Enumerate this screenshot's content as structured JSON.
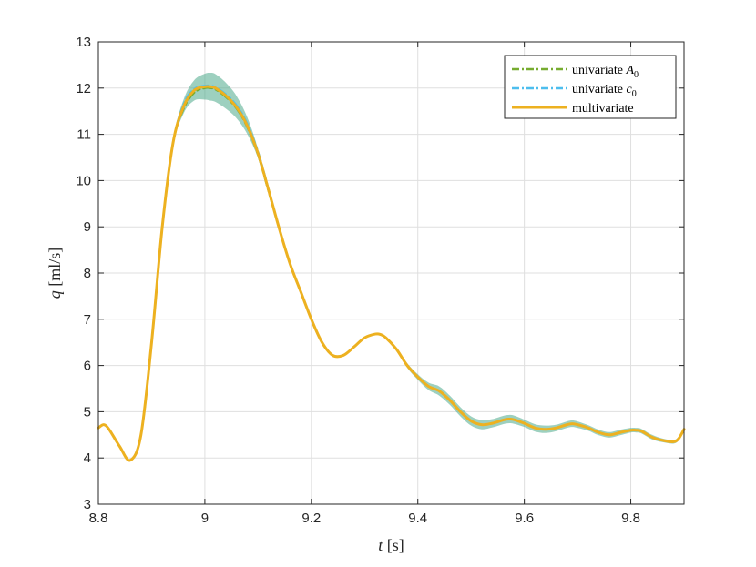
{
  "chart_data": {
    "type": "line",
    "xlabel": "t [s]",
    "ylabel": "q [ml/s]",
    "xlim": [
      8.8,
      9.9
    ],
    "ylim": [
      3,
      13
    ],
    "xticks": [
      8.8,
      9.0,
      9.2,
      9.4,
      9.6,
      9.8
    ],
    "xtick_labels": [
      "8.8",
      "9",
      "9.2",
      "9.4",
      "9.6",
      "9.8"
    ],
    "yticks": [
      3,
      4,
      5,
      6,
      7,
      8,
      9,
      10,
      11,
      12,
      13
    ],
    "ytick_labels": [
      "3",
      "4",
      "5",
      "6",
      "7",
      "8",
      "9",
      "10",
      "11",
      "12",
      "13"
    ],
    "grid": true,
    "legend_position": "top-right",
    "colors": {
      "univariate_A0": "#77ac30",
      "univariate_c0": "#4dbeee",
      "multivariate": "#edb120",
      "band": "#4daa8a"
    },
    "x": [
      8.8,
      8.81,
      8.82,
      8.84,
      8.86,
      8.88,
      8.9,
      8.92,
      8.94,
      8.96,
      8.98,
      9.0,
      9.01,
      9.02,
      9.04,
      9.06,
      9.08,
      9.1,
      9.12,
      9.14,
      9.16,
      9.18,
      9.2,
      9.22,
      9.24,
      9.26,
      9.28,
      9.3,
      9.32,
      9.33,
      9.34,
      9.36,
      9.38,
      9.4,
      9.42,
      9.44,
      9.46,
      9.48,
      9.5,
      9.52,
      9.54,
      9.56,
      9.57,
      9.58,
      9.6,
      9.62,
      9.64,
      9.66,
      9.68,
      9.69,
      9.7,
      9.72,
      9.74,
      9.76,
      9.78,
      9.8,
      9.81,
      9.82,
      9.84,
      9.86,
      9.88,
      9.89,
      9.9
    ],
    "band_halfwidth": [
      0.02,
      0.02,
      0.02,
      0.02,
      0.02,
      0.02,
      0.03,
      0.05,
      0.08,
      0.15,
      0.22,
      0.28,
      0.3,
      0.3,
      0.28,
      0.24,
      0.18,
      0.1,
      0.05,
      0.03,
      0.02,
      0.02,
      0.02,
      0.02,
      0.02,
      0.02,
      0.02,
      0.02,
      0.02,
      0.02,
      0.02,
      0.03,
      0.05,
      0.06,
      0.08,
      0.1,
      0.1,
      0.1,
      0.1,
      0.1,
      0.09,
      0.09,
      0.09,
      0.09,
      0.08,
      0.08,
      0.08,
      0.07,
      0.07,
      0.07,
      0.07,
      0.06,
      0.06,
      0.06,
      0.06,
      0.05,
      0.05,
      0.05,
      0.05,
      0.04,
      0.04,
      0.04,
      0.04
    ],
    "series": [
      {
        "name": "univariate A0",
        "legend_label": "univariate A",
        "legend_sub": "0",
        "style": "dash-dot",
        "color_key": "univariate_A0",
        "values": [
          4.65,
          4.72,
          4.62,
          4.25,
          3.95,
          4.5,
          6.5,
          9.0,
          10.8,
          11.55,
          11.9,
          12.0,
          12.0,
          11.97,
          11.8,
          11.55,
          11.15,
          10.55,
          9.75,
          8.95,
          8.2,
          7.6,
          7.0,
          6.5,
          6.22,
          6.22,
          6.4,
          6.6,
          6.68,
          6.67,
          6.6,
          6.35,
          6.0,
          5.75,
          5.55,
          5.45,
          5.25,
          5.0,
          4.8,
          4.72,
          4.75,
          4.82,
          4.84,
          4.83,
          4.75,
          4.65,
          4.62,
          4.65,
          4.72,
          4.74,
          4.72,
          4.65,
          4.55,
          4.5,
          4.55,
          4.6,
          4.6,
          4.58,
          4.45,
          4.38,
          4.35,
          4.42,
          4.62
        ]
      },
      {
        "name": "univariate c0",
        "legend_label": "univariate c",
        "legend_sub": "0",
        "style": "dash-dot",
        "color_key": "univariate_c0",
        "values": [
          4.65,
          4.72,
          4.62,
          4.25,
          3.95,
          4.5,
          6.5,
          9.0,
          10.8,
          11.65,
          11.98,
          12.05,
          12.05,
          12.02,
          11.86,
          11.62,
          11.22,
          10.62,
          9.8,
          8.95,
          8.2,
          7.6,
          7.0,
          6.5,
          6.22,
          6.22,
          6.4,
          6.6,
          6.68,
          6.67,
          6.6,
          6.35,
          6.0,
          5.75,
          5.55,
          5.45,
          5.25,
          5.0,
          4.8,
          4.72,
          4.75,
          4.82,
          4.84,
          4.83,
          4.75,
          4.65,
          4.62,
          4.65,
          4.72,
          4.74,
          4.72,
          4.65,
          4.55,
          4.5,
          4.55,
          4.6,
          4.6,
          4.58,
          4.45,
          4.38,
          4.35,
          4.42,
          4.62
        ]
      },
      {
        "name": "multivariate",
        "legend_label": "multivariate",
        "legend_sub": "",
        "style": "solid",
        "color_key": "multivariate",
        "values": [
          4.65,
          4.72,
          4.62,
          4.25,
          3.95,
          4.5,
          6.5,
          9.0,
          10.8,
          11.6,
          11.95,
          12.03,
          12.03,
          12.0,
          11.83,
          11.58,
          11.18,
          10.58,
          9.78,
          8.95,
          8.2,
          7.6,
          7.0,
          6.5,
          6.22,
          6.22,
          6.4,
          6.6,
          6.68,
          6.67,
          6.6,
          6.35,
          6.0,
          5.75,
          5.55,
          5.45,
          5.25,
          5.0,
          4.8,
          4.72,
          4.75,
          4.82,
          4.84,
          4.83,
          4.75,
          4.65,
          4.62,
          4.65,
          4.72,
          4.74,
          4.72,
          4.65,
          4.55,
          4.5,
          4.55,
          4.6,
          4.6,
          4.58,
          4.45,
          4.38,
          4.35,
          4.42,
          4.62
        ]
      }
    ]
  }
}
